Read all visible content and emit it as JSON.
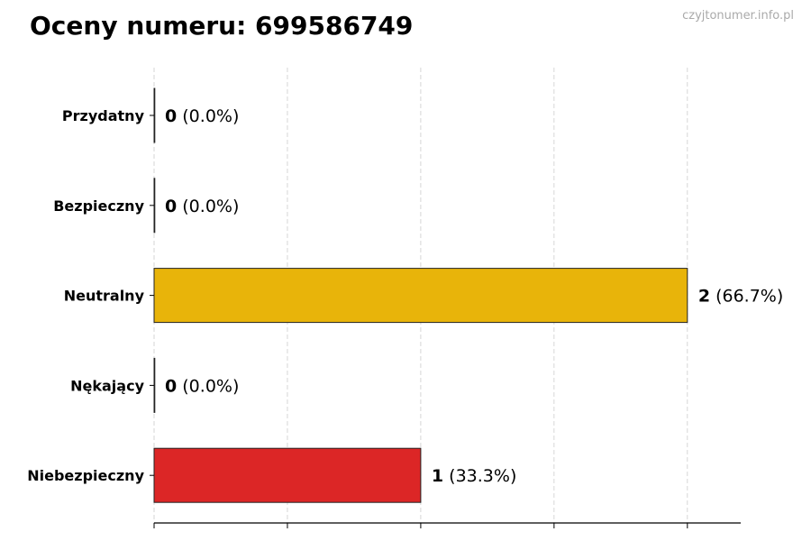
{
  "title": "Oceny numeru: 699586749",
  "watermark": "czyjtonumer.info.pl",
  "chart_data": {
    "type": "bar",
    "orientation": "horizontal",
    "title": "Oceny numeru: 699586749",
    "categories": [
      "Przydatny",
      "Bezpieczny",
      "Neutralny",
      "Nękający",
      "Niebezpieczny"
    ],
    "values": [
      0,
      0,
      2,
      0,
      1
    ],
    "labels": [
      "(0.0%)",
      "(0.0%)",
      "(66.7%)",
      "(0.0%)",
      "(33.3%)"
    ],
    "colors": [
      "#2ca02c",
      "#1f77b4",
      "#e8b40a",
      "#ff7f0e",
      "#dc2626"
    ],
    "xlim": [
      0,
      2.2
    ],
    "xticks": [
      0,
      0.5,
      1,
      1.5,
      2
    ],
    "xtick_labels_shown": false,
    "grid": "x, dashed",
    "xlabel": "",
    "ylabel": ""
  }
}
